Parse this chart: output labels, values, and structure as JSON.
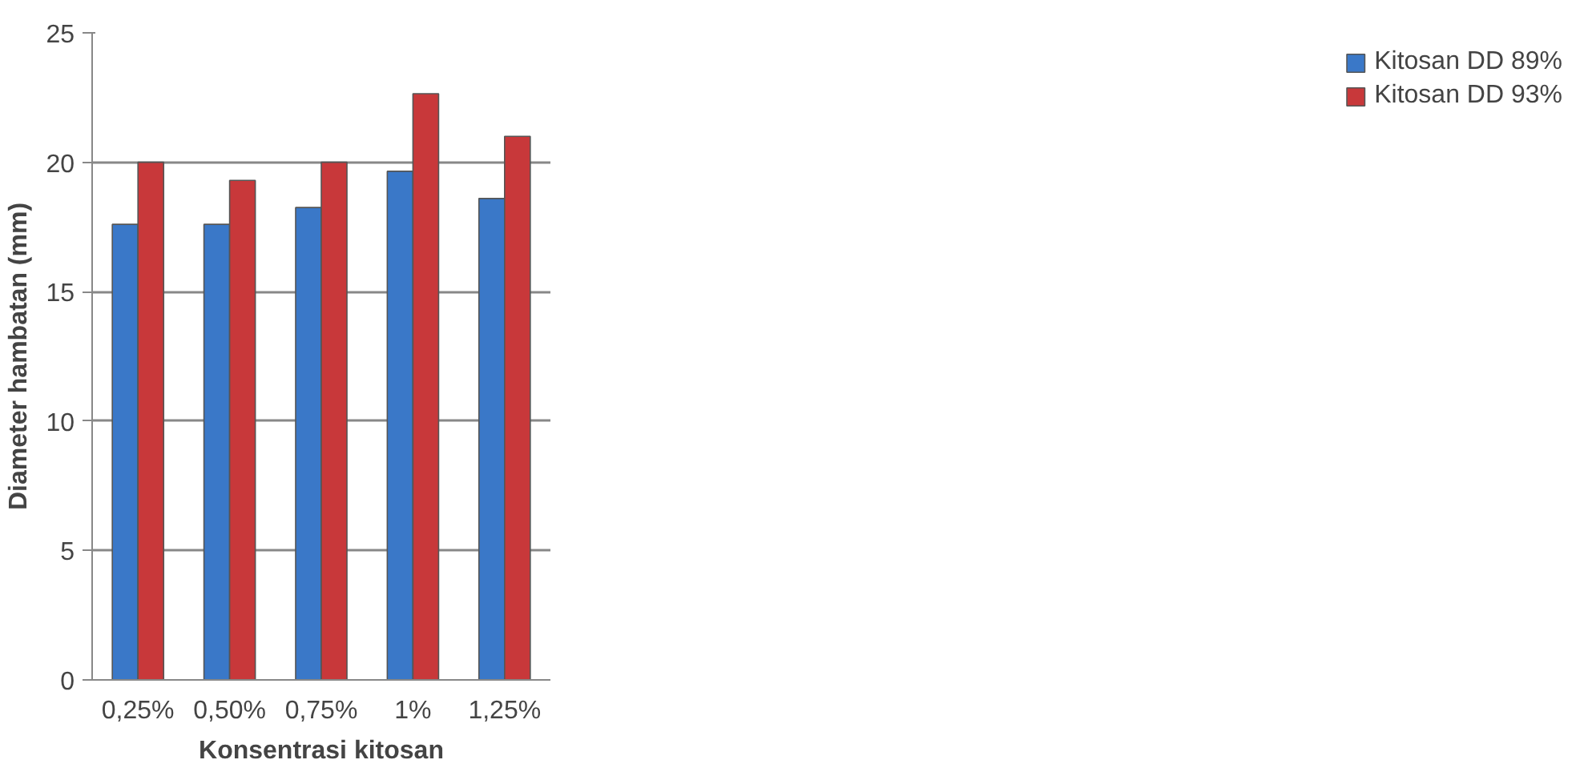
{
  "chart_data": {
    "type": "bar",
    "xlabel": "Konsentrasi kitosan",
    "ylabel": "Diameter hambatan (mm)",
    "categories": [
      "0,25%",
      "0,50%",
      "0,75%",
      "1%",
      "1,25%"
    ],
    "series": [
      {
        "name": "Kitosan DD 89%",
        "color": "#3a78c8",
        "values": [
          17.6,
          17.6,
          18.25,
          19.65,
          18.6
        ]
      },
      {
        "name": "Kitosan DD 93%",
        "color": "#c8383a",
        "values": [
          20.0,
          19.3,
          20.0,
          22.65,
          21.0
        ]
      }
    ],
    "ylim": [
      0,
      25
    ],
    "yticks": [
      0,
      5,
      10,
      15,
      20,
      25
    ],
    "grid": "y",
    "legend": "right"
  }
}
